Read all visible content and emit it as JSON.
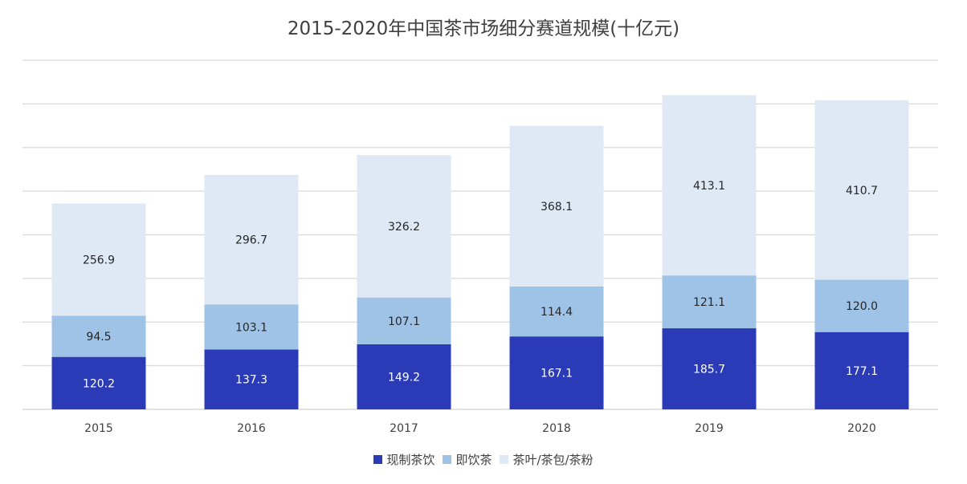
{
  "chart_data": {
    "type": "bar",
    "stacked": true,
    "title": "2015-2020年中国茶市场细分赛道规模(十亿元)",
    "categories": [
      "2015",
      "2016",
      "2017",
      "2018",
      "2019",
      "2020"
    ],
    "series": [
      {
        "name": "现制茶饮",
        "color": "#2B3BB8",
        "label_color": "#ffffff",
        "values": [
          120.2,
          137.3,
          149.2,
          167.1,
          185.7,
          177.1
        ],
        "labels": [
          "120.2",
          "137.3",
          "149.2",
          "167.1",
          "185.7",
          "177.1"
        ]
      },
      {
        "name": "即饮茶",
        "color": "#9FC3E7",
        "label_color": "#262626",
        "values": [
          94.5,
          103.1,
          107.1,
          114.4,
          121.1,
          120.0
        ],
        "labels": [
          "94.5",
          "103.1",
          "107.1",
          "114.4",
          "121.1",
          "120.0"
        ]
      },
      {
        "name": "茶叶/茶包/茶粉",
        "color": "#DEE9F5",
        "label_color": "#262626",
        "values": [
          256.9,
          296.7,
          326.2,
          368.1,
          413.1,
          410.7
        ],
        "labels": [
          "256.9",
          "296.7",
          "326.2",
          "368.1",
          "413.1",
          "410.7"
        ]
      }
    ],
    "ylim": [
      0,
      800
    ],
    "grid": true,
    "y_axis_labels_shown": false,
    "legend_position": "bottom"
  },
  "colors": {
    "gridline": "#D9D9D9",
    "text": "#404040"
  }
}
